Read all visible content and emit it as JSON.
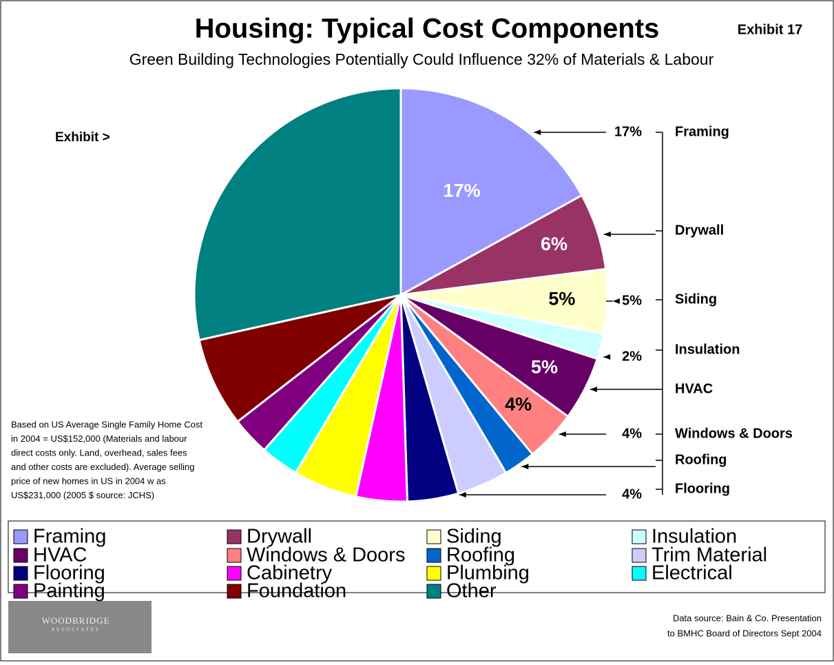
{
  "chart_data": {
    "type": "pie",
    "title": "Housing: Typical Cost Components",
    "subtitle": "Green Building Technologies Potentially Could Influence 32% of Materials & Labour",
    "exhibit": "Exhibit 17",
    "exhibit_pointer": "Exhibit >",
    "categories": [
      "Framing",
      "Drywall",
      "Siding",
      "Insulation",
      "HVAC",
      "Windows & Doors",
      "Roofing",
      "Trim Material",
      "Flooring",
      "Cabinetry",
      "Plumbing",
      "Electrical",
      "Painting",
      "Foundation",
      "Other"
    ],
    "values": [
      17,
      6,
      5,
      2,
      5,
      4,
      2.5,
      4,
      4,
      4,
      5,
      3,
      3,
      7,
      28.5
    ],
    "value_labels": [
      "17%",
      "6%",
      "5%",
      null,
      "5%",
      "4%",
      null,
      null,
      null,
      null,
      null,
      null,
      null,
      null,
      null
    ],
    "colors": [
      "#9999ff",
      "#993366",
      "#ffffcc",
      "#ccffff",
      "#660066",
      "#ff8080",
      "#0066cc",
      "#ccccff",
      "#000080",
      "#ff00ff",
      "#ffff00",
      "#00ffff",
      "#800080",
      "#800000",
      "#008080"
    ],
    "callouts": [
      {
        "label": "Framing",
        "value_label": "17%"
      },
      {
        "label": "Drywall"
      },
      {
        "label": "Siding",
        "value_label": "5%"
      },
      {
        "label": "Insulation",
        "value_label": "2%"
      },
      {
        "label": "HVAC"
      },
      {
        "label": "Windows & Doors",
        "value_label": "4%"
      },
      {
        "label": "Roofing"
      },
      {
        "label": "Flooring",
        "value_label": "4%"
      }
    ],
    "note": [
      "Based on US Average Single Family Home Cost",
      "in 2004 = US$152,000 (Materials and labour",
      "direct costs only. Land, overhead, sales fees",
      "and other costs are excluded). Average selling",
      "price of new  homes in US in 2004 w as",
      "US$231,000 (2005 $ source: JCHS)"
    ],
    "source": [
      "Data source: Bain & Co. Presentation",
      "to BMHC Board of Directors Sept 2004"
    ],
    "logo": [
      "WOODBRIDGE",
      "ASSOCIATES"
    ]
  }
}
